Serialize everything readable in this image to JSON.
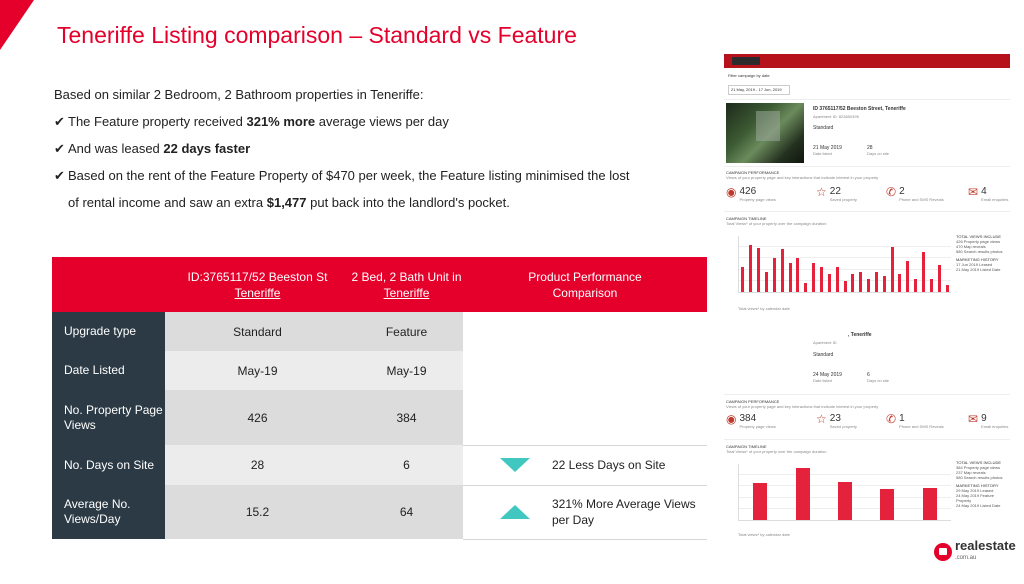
{
  "title": "Teneriffe Listing comparison – Standard vs Feature",
  "intro": {
    "line1": "Based on similar 2 Bedroom, 2 Bathroom properties in Teneriffe:",
    "check_mark": "✔",
    "b1_pre": "The Feature property received ",
    "b1_bold": "321% more",
    "b1_post": " average views per day",
    "b2_pre": "And was leased ",
    "b2_bold": "22 days faster",
    "b3_pre": "Based on the rent of the Feature Property of $470 per week, the Feature listing minimised the lost",
    "b3_cont_pre": "of rental income and saw an extra ",
    "b3_bold": "$1,477",
    "b3_post": " put back into the landlord's pocket."
  },
  "table": {
    "header": {
      "std_line1": "ID:3765117/52 Beeston St",
      "std_line2": "Teneriffe",
      "feat_line1": "2 Bed, 2 Bath Unit in",
      "feat_line2": "Teneriffe",
      "cmp_line1": "Product Performance",
      "cmp_line2": "Comparison"
    },
    "rows": [
      {
        "label": "Upgrade type",
        "standard": "Standard",
        "feature": "Feature",
        "comparison": ""
      },
      {
        "label": "Date Listed",
        "standard": "May-19",
        "feature": "May-19",
        "comparison": ""
      },
      {
        "label": "No. Property Page Views",
        "standard": "426",
        "feature": "384",
        "comparison": ""
      },
      {
        "label": "No. Days on Site",
        "standard": "28",
        "feature": "6",
        "comparison": "22 Less Days on Site"
      },
      {
        "label": "Average No. Views/Day",
        "standard": "15.2",
        "feature": "64",
        "comparison": "321% More Average Views per Day"
      }
    ]
  },
  "report1": {
    "filter_label": "Filter campaign by date",
    "date_range": "21 May, 2019 - 17 Jun, 2019",
    "address": "ID 3765117/52 Beeston Street, Teneriffe",
    "apartment": "Apartment ID: 823650395",
    "plan": "Standard",
    "listed_date": "21 May 2019",
    "listed_label": "Date listed",
    "days_value": "28",
    "days_label": "Days on site",
    "perf_title": "CAMPAIGN PERFORMANCE",
    "perf_sub": "Views of your property page and key interactions that indicate interest in your property",
    "m1_value": "426",
    "m1_label": "Property page views",
    "m2_value": "22",
    "m2_label": "Saved property",
    "m3_value": "2",
    "m3_label": "Phone and SMS Reveals",
    "m4_value": "4",
    "m4_label": "Email enquiries",
    "timeline_title": "CAMPAIGN TIMELINE",
    "timeline_sub": "Total Views* of your property over the campaign duration",
    "side_title": "TOTAL VIEWS INCLUDE",
    "side_1": "426 Property page views",
    "side_2": "470 Map reveals",
    "side_3": "580 Search results photos",
    "history_title": "MARKETING HISTORY",
    "history_1": "17 Jun 2019 Leased",
    "history_2": "21 May 2019 Listed Date",
    "legend": "Total views* by calendar date"
  },
  "report2": {
    "address": ", Teneriffe",
    "apartment": "Apartment ID",
    "plan": "Standard",
    "listed_date": "24 May 2019",
    "listed_label": "Date listed",
    "days_value": "6",
    "days_label": "Days on site",
    "perf_title": "CAMPAIGN PERFORMANCE",
    "perf_sub": "Views of your property page and key interactions that indicate interest in your property",
    "m1_value": "384",
    "m1_label": "Property page views",
    "m2_value": "23",
    "m2_label": "Saved property",
    "m3_value": "1",
    "m3_label": "Phone and SMS Reveals",
    "m4_value": "9",
    "m4_label": "Email enquiries",
    "timeline_title": "CAMPAIGN TIMELINE",
    "timeline_sub": "Total Views* of your property over the campaign duration",
    "side_title": "TOTAL VIEWS INCLUDE",
    "side_1": "384 Property page views",
    "side_2": "237 Map reveals",
    "side_3": "580 Search results photos",
    "history_title": "MARKETING HISTORY",
    "history_1": "29 May 2019 Leased",
    "history_2": "24 May 2019 Feature Property",
    "history_3": "24 May 2019 Listed Date",
    "legend": "Total views* by calendar date"
  },
  "chart_data": [
    {
      "type": "bar",
      "title": "CAMPAIGN TIMELINE",
      "series": [
        {
          "name": "Total views* by calendar date",
          "values": [
            22,
            42,
            39,
            18,
            30,
            38,
            26,
            30,
            8,
            26,
            22,
            16,
            22,
            10,
            16,
            18,
            12,
            18,
            14,
            40,
            16,
            28,
            12,
            36,
            12,
            24,
            6
          ]
        }
      ]
    },
    {
      "type": "bar",
      "title": "CAMPAIGN TIMELINE",
      "series": [
        {
          "name": "Total views* by calendar date",
          "values": [
            66,
            92,
            68,
            55,
            58
          ]
        }
      ]
    }
  ],
  "brand": {
    "name": "realestate",
    "domain": ".com.au",
    "accent": "#e4002b",
    "dark": "#2b3a45",
    "teal": "#3fc7c0"
  }
}
